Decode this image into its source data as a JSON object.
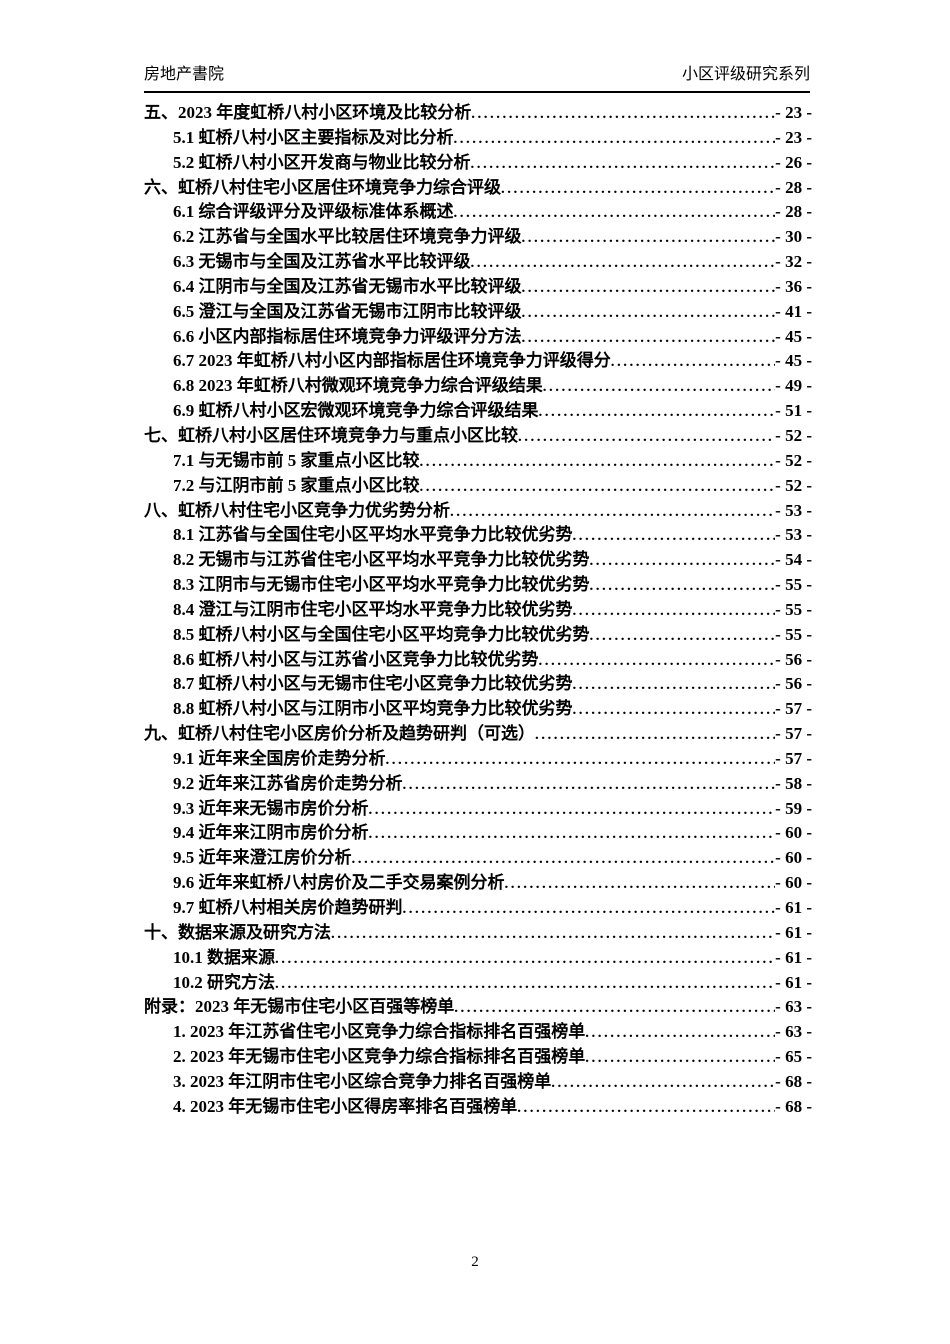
{
  "header": {
    "left": "房地产書院",
    "right": "小区评级研究系列"
  },
  "toc": {
    "entries": [
      {
        "text": "五、2023 年度虹桥八村小区环境及比较分析",
        "page": "- 23 -",
        "level": 0
      },
      {
        "text": "5.1 虹桥八村小区主要指标及对比分析",
        "page": "- 23 -",
        "level": 1
      },
      {
        "text": "5.2 虹桥八村小区开发商与物业比较分析",
        "page": "- 26 -",
        "level": 1
      },
      {
        "text": "六、虹桥八村住宅小区居住环境竞争力综合评级",
        "page": "- 28 -",
        "level": 0
      },
      {
        "text": "6.1 综合评级评分及评级标准体系概述",
        "page": "- 28 -",
        "level": 1
      },
      {
        "text": "6.2 江苏省与全国水平比较居住环境竞争力评级",
        "page": "- 30 -",
        "level": 1
      },
      {
        "text": "6.3 无锡市与全国及江苏省水平比较评级",
        "page": "- 32 -",
        "level": 1
      },
      {
        "text": "6.4 江阴市与全国及江苏省无锡市水平比较评级",
        "page": "- 36 -",
        "level": 1
      },
      {
        "text": "6.5 澄江与全国及江苏省无锡市江阴市比较评级",
        "page": "- 41 -",
        "level": 1
      },
      {
        "text": "6.6 小区内部指标居住环境竞争力评级评分方法",
        "page": "- 45 -",
        "level": 1
      },
      {
        "text": "6.7 2023 年虹桥八村小区内部指标居住环境竞争力评级得分",
        "page": "- 45 -",
        "level": 1
      },
      {
        "text": "6.8 2023 年虹桥八村微观环境竞争力综合评级结果",
        "page": "- 49 -",
        "level": 1
      },
      {
        "text": "6.9 虹桥八村小区宏微观环境竞争力综合评级结果",
        "page": "- 51 -",
        "level": 1
      },
      {
        "text": "七、虹桥八村小区居住环境竞争力与重点小区比较",
        "page": "- 52 -",
        "level": 0
      },
      {
        "text": "7.1 与无锡市前 5 家重点小区比较",
        "page": "- 52 -",
        "level": 1
      },
      {
        "text": "7.2 与江阴市前 5 家重点小区比较",
        "page": "- 52 -",
        "level": 1
      },
      {
        "text": "八、虹桥八村住宅小区竞争力优劣势分析",
        "page": "- 53 -",
        "level": 0
      },
      {
        "text": "8.1 江苏省与全国住宅小区平均水平竞争力比较优劣势",
        "page": "- 53 -",
        "level": 1
      },
      {
        "text": "8.2 无锡市与江苏省住宅小区平均水平竞争力比较优劣势",
        "page": "- 54 -",
        "level": 1
      },
      {
        "text": "8.3 江阴市与无锡市住宅小区平均水平竞争力比较优劣势",
        "page": "- 55 -",
        "level": 1
      },
      {
        "text": "8.4 澄江与江阴市住宅小区平均水平竞争力比较优劣势",
        "page": "- 55 -",
        "level": 1
      },
      {
        "text": "8.5 虹桥八村小区与全国住宅小区平均竞争力比较优劣势",
        "page": "- 55 -",
        "level": 1
      },
      {
        "text": "8.6 虹桥八村小区与江苏省小区竞争力比较优劣势",
        "page": "- 56 -",
        "level": 1
      },
      {
        "text": "8.7 虹桥八村小区与无锡市住宅小区竞争力比较优劣势",
        "page": "- 56 -",
        "level": 1
      },
      {
        "text": "8.8 虹桥八村小区与江阴市小区平均竞争力比较优劣势",
        "page": "- 57 -",
        "level": 1
      },
      {
        "text": "九、虹桥八村住宅小区房价分析及趋势研判（可选）",
        "page": "- 57 -",
        "level": 0
      },
      {
        "text": "9.1 近年来全国房价走势分析",
        "page": "- 57 -",
        "level": 1
      },
      {
        "text": "9.2 近年来江苏省房价走势分析",
        "page": "- 58 -",
        "level": 1
      },
      {
        "text": "9.3 近年来无锡市房价分析",
        "page": "- 59 -",
        "level": 1
      },
      {
        "text": "9.4 近年来江阴市房价分析",
        "page": "- 60 -",
        "level": 1
      },
      {
        "text": "9.5 近年来澄江房价分析",
        "page": "- 60 -",
        "level": 1
      },
      {
        "text": "9.6 近年来虹桥八村房价及二手交易案例分析",
        "page": "- 60 -",
        "level": 1
      },
      {
        "text": "9.7 虹桥八村相关房价趋势研判",
        "page": "- 61 -",
        "level": 1
      },
      {
        "text": "十、数据来源及研究方法",
        "page": "- 61 -",
        "level": 0
      },
      {
        "text": "10.1 数据来源",
        "page": "- 61 -",
        "level": 1
      },
      {
        "text": "10.2 研究方法",
        "page": "- 61 -",
        "level": 1
      },
      {
        "text": "附录：2023 年无锡市住宅小区百强等榜单",
        "page": "- 63 -",
        "level": 0
      },
      {
        "text": "1. 2023 年江苏省住宅小区竞争力综合指标排名百强榜单",
        "page": "- 63 -",
        "level": 1
      },
      {
        "text": "2. 2023 年无锡市住宅小区竞争力综合指标排名百强榜单",
        "page": "- 65 -",
        "level": 1
      },
      {
        "text": "3. 2023 年江阴市住宅小区综合竞争力排名百强榜单",
        "page": "- 68 -",
        "level": 1
      },
      {
        "text": "4. 2023 年无锡市住宅小区得房率排名百强榜单",
        "page": "- 68 -",
        "level": 1
      }
    ]
  },
  "footer": {
    "page_number": "2"
  }
}
